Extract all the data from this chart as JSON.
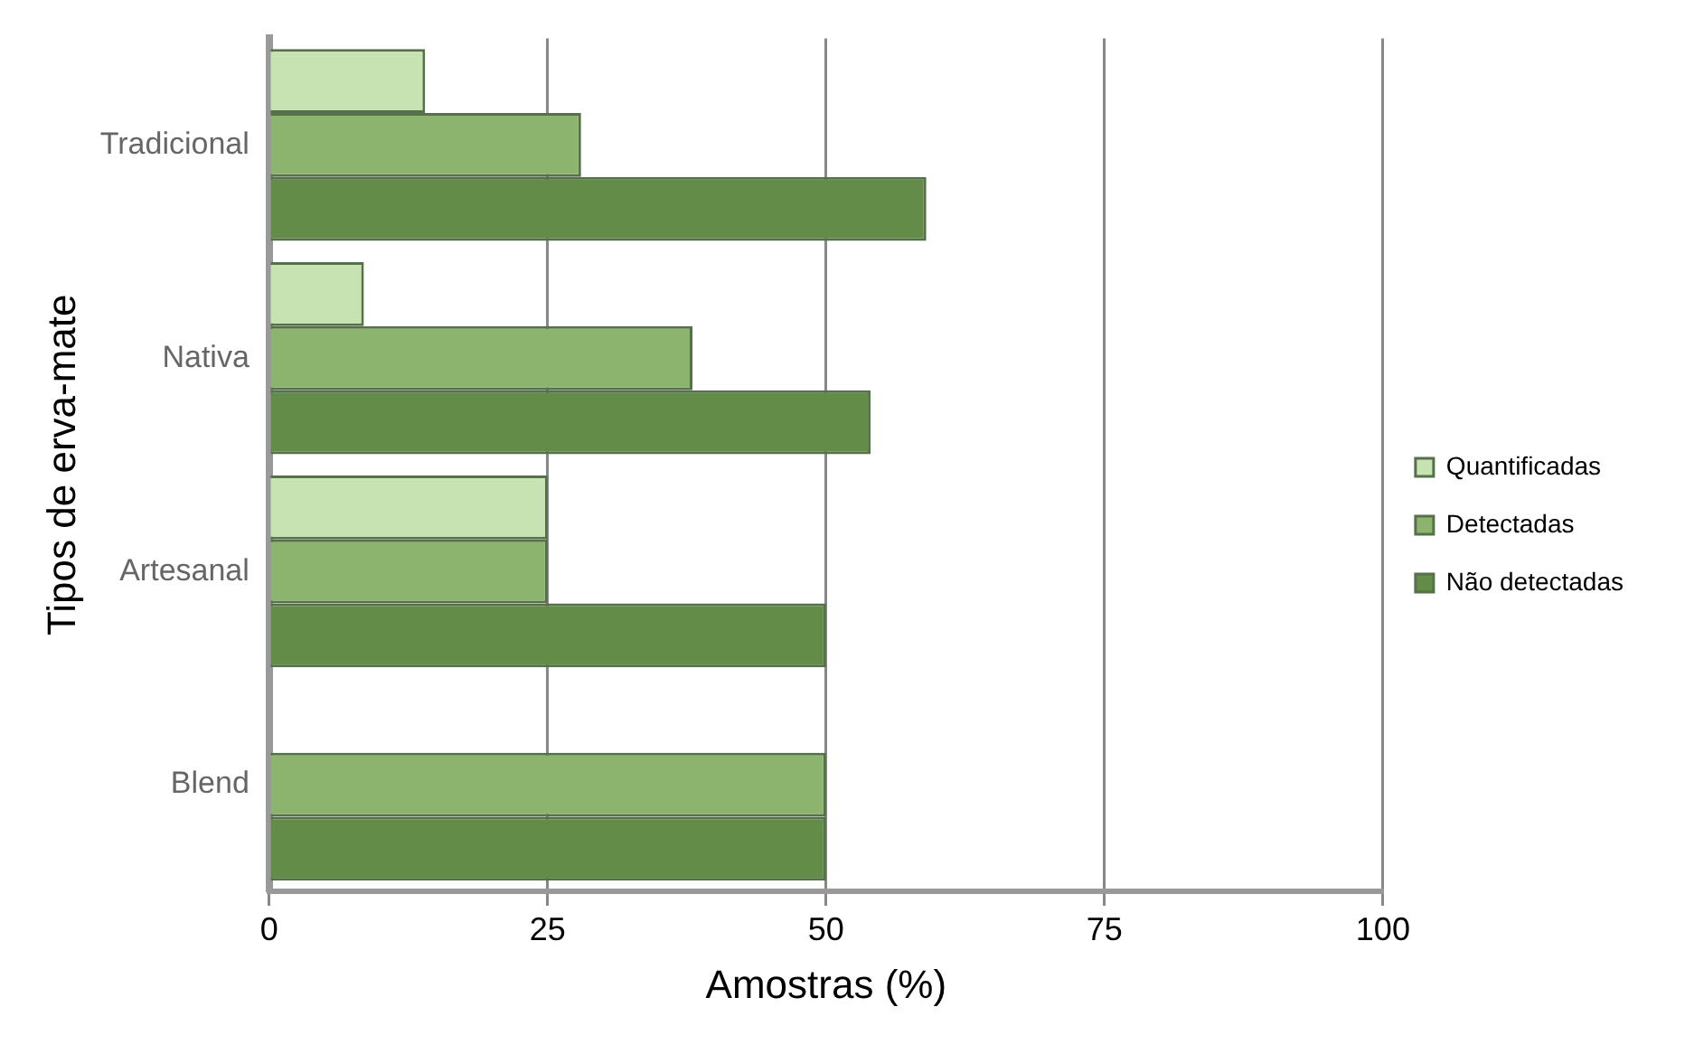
{
  "chart_data": {
    "type": "bar",
    "orientation": "horizontal",
    "xlabel": "Amostras (%)",
    "ylabel": "Tipos de erva-mate",
    "categories": [
      "Tradicional",
      "Nativa",
      "Artesanal",
      "Blend"
    ],
    "series": [
      {
        "name": "Quantificadas",
        "color": "#c6e3b1",
        "values": [
          14,
          8.5,
          25,
          null
        ]
      },
      {
        "name": "Detectadas",
        "color": "#8db46e",
        "values": [
          28,
          38,
          25,
          50
        ]
      },
      {
        "name": "Não detectadas",
        "color": "#628c47",
        "values": [
          59,
          54,
          50,
          50
        ]
      }
    ],
    "xlim": [
      0,
      100
    ],
    "xticks": [
      0,
      25,
      50,
      75,
      100
    ],
    "grid": "x",
    "legend": "right"
  }
}
